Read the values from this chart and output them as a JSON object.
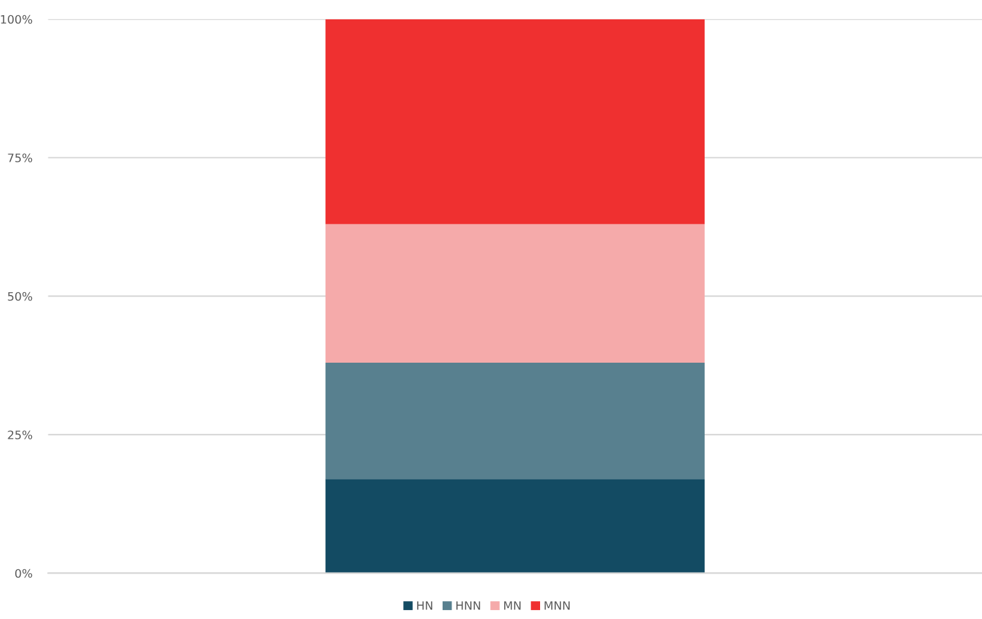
{
  "chart_data": {
    "type": "bar",
    "stacked": true,
    "categories": [
      null
    ],
    "series": [
      {
        "name": "HN",
        "color": "#134b63",
        "values": [
          17
        ]
      },
      {
        "name": "HNN",
        "color": "#58808f",
        "values": [
          21
        ]
      },
      {
        "name": "MN",
        "color": "#f5aaaa",
        "values": [
          25
        ]
      },
      {
        "name": "MNN",
        "color": "#ef3030",
        "values": [
          37
        ]
      }
    ],
    "ylim": [
      0,
      100
    ],
    "yticks": [
      {
        "value": 0,
        "label": "0%"
      },
      {
        "value": 25,
        "label": "25%"
      },
      {
        "value": 50,
        "label": "50%"
      },
      {
        "value": 75,
        "label": "75%"
      },
      {
        "value": 100,
        "label": "100%"
      }
    ],
    "grid": "y",
    "legend": "bottom",
    "tick_labels": "y"
  }
}
